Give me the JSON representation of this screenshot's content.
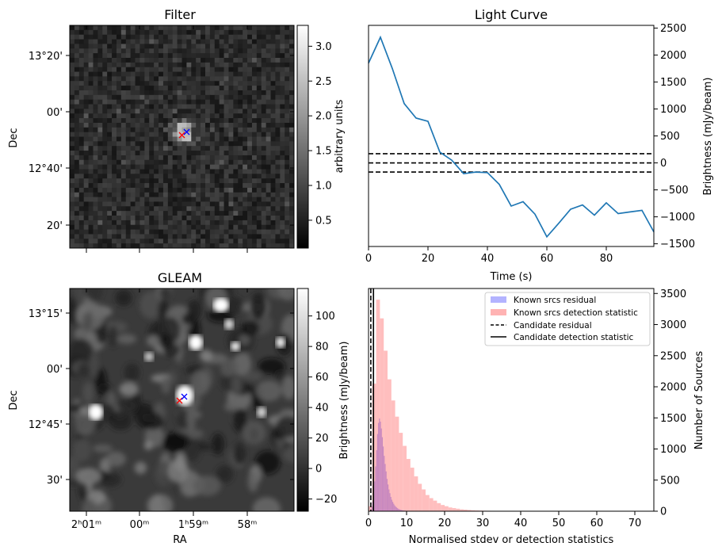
{
  "colors": {
    "line": "#1f77b4",
    "known_residual": "#b3b3ff",
    "known_detection": "#ffb3b3",
    "overlap": "#c080c0",
    "candidate": "#000000",
    "marker_red": "#ff0000",
    "marker_blue": "#0000ff"
  },
  "chart_data": [
    {
      "id": "filter",
      "type": "heatmap",
      "title": "Filter",
      "xlabel": "",
      "ylabel": "Dec",
      "y_ticks": [
        "13°20'",
        "00'",
        "12°40'",
        "20'"
      ],
      "colorbar": {
        "label": "arbitrary units",
        "ticks": [
          "0.5",
          "1.0",
          "1.5",
          "2.0",
          "2.5",
          "3.0"
        ],
        "tick_values": [
          0.5,
          1.0,
          1.5,
          2.0,
          2.5,
          3.0
        ],
        "range": [
          0.1,
          3.3
        ],
        "colormap": "gray"
      },
      "markers": [
        {
          "symbol": "x",
          "color": "red"
        },
        {
          "symbol": "x",
          "color": "blue"
        }
      ]
    },
    {
      "id": "light_curve",
      "type": "line",
      "title": "Light Curve",
      "xlabel": "Time (s)",
      "ylabel": "Brightness (mJy/beam)",
      "xlim": [
        0,
        96
      ],
      "ylim": [
        -1550,
        2550
      ],
      "x_ticks": [
        0,
        20,
        40,
        60,
        80
      ],
      "y_ticks": [
        -1500,
        -1000,
        -500,
        0,
        500,
        1000,
        1500,
        2000,
        2500
      ],
      "x": [
        0,
        4,
        8,
        12,
        16,
        20,
        24,
        28,
        32,
        36,
        40,
        44,
        48,
        52,
        56,
        60,
        64,
        68,
        72,
        76,
        80,
        84,
        88,
        92,
        96
      ],
      "values": [
        1850,
        2330,
        1750,
        1100,
        830,
        770,
        200,
        50,
        -200,
        -170,
        -180,
        -400,
        -800,
        -720,
        -950,
        -1370,
        -1120,
        -860,
        -780,
        -970,
        -740,
        -940,
        -910,
        -880,
        -1280
      ],
      "hlines": [
        170,
        0,
        -170
      ]
    },
    {
      "id": "gleam",
      "type": "heatmap",
      "title": "GLEAM",
      "xlabel": "RA",
      "ylabel": "Dec",
      "x_ticks": [
        "2ʰ01ᵐ",
        "00ᵐ",
        "1ʰ59ᵐ",
        "58ᵐ"
      ],
      "y_ticks": [
        "13°15'",
        "00'",
        "12°45'",
        "30'"
      ],
      "colorbar": {
        "label": "Brightness (mJy/beam)",
        "ticks": [
          "−20",
          "0",
          "20",
          "40",
          "60",
          "80",
          "100"
        ],
        "tick_values": [
          -20,
          0,
          20,
          40,
          60,
          80,
          100
        ],
        "range": [
          -28,
          118
        ],
        "colormap": "gray"
      },
      "markers": [
        {
          "symbol": "x",
          "color": "red"
        },
        {
          "symbol": "x",
          "color": "blue"
        }
      ]
    },
    {
      "id": "histogram",
      "type": "bar",
      "title": "",
      "xlabel": "Normalised stdev or detection statistics",
      "ylabel": "Number of Sources",
      "xlim": [
        0,
        75
      ],
      "ylim": [
        0,
        3580
      ],
      "x_ticks": [
        0,
        10,
        20,
        30,
        40,
        50,
        60,
        70
      ],
      "y_ticks": [
        0,
        500,
        1000,
        1500,
        2000,
        2500,
        3000,
        3500
      ],
      "legend_position": "top-right",
      "series": [
        {
          "name": "Known srcs residual",
          "bin_width": 0.25,
          "bin_start": 0.5,
          "values": [
            20,
            70,
            150,
            280,
            480,
            720,
            980,
            1240,
            1420,
            1490,
            1440,
            1330,
            1190,
            1040,
            890,
            760,
            640,
            520,
            430,
            350,
            290,
            230,
            185,
            150,
            120,
            95,
            75,
            60,
            48,
            38,
            30,
            24,
            19,
            15,
            12,
            10,
            8,
            6,
            5,
            4
          ]
        },
        {
          "name": "Known srcs detection statistic",
          "bin_width": 1,
          "bin_start": 0,
          "values": [
            80,
            2050,
            3400,
            3100,
            2580,
            2120,
            1780,
            1520,
            1260,
            1050,
            840,
            700,
            560,
            440,
            350,
            260,
            210,
            170,
            130,
            100,
            80,
            60,
            50,
            40,
            30,
            25,
            20,
            15,
            12,
            10,
            8,
            7,
            6,
            5,
            4,
            4,
            3,
            3,
            3,
            2,
            2,
            2,
            2,
            2,
            1,
            1,
            1,
            1,
            1,
            1
          ]
        },
        {
          "name": "Candidate residual",
          "style": "dashed",
          "x": 0.6
        },
        {
          "name": "Candidate detection statistic",
          "style": "solid",
          "x": 1.3
        }
      ]
    }
  ]
}
